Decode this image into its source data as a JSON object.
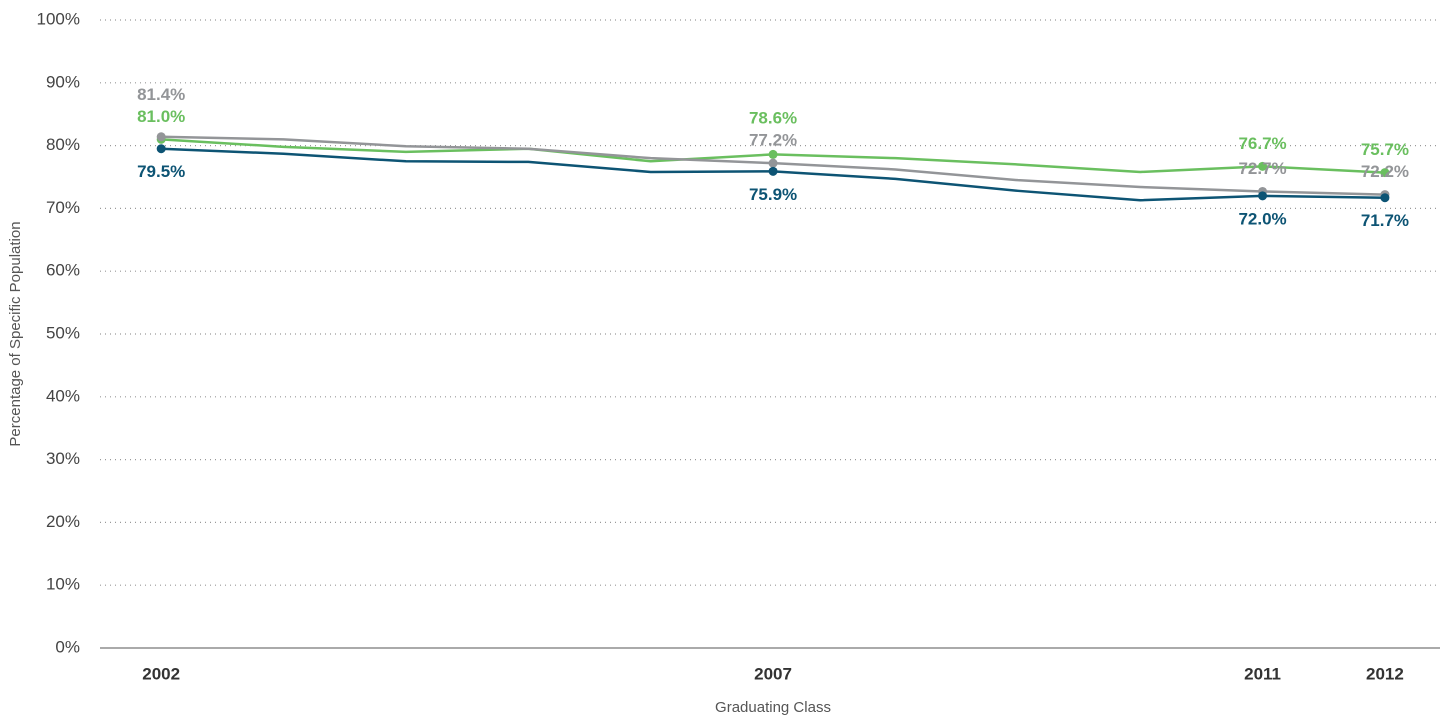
{
  "chart_data": {
    "type": "line",
    "x_label": "Graduating Class",
    "y_label": "Percentage of Specific Population",
    "x": [
      2002,
      2003,
      2004,
      2005,
      2006,
      2007,
      2008,
      2009,
      2010,
      2011,
      2012
    ],
    "xlim": [
      2001.5,
      2012.45
    ],
    "xticks": [
      2002,
      2007,
      2011,
      2012
    ],
    "ylim": [
      0,
      100
    ],
    "yticks": [
      {
        "value": 0,
        "label": "0%"
      },
      {
        "value": 10,
        "label": "10%"
      },
      {
        "value": 20,
        "label": "20%"
      },
      {
        "value": 30,
        "label": "30%"
      },
      {
        "value": 40,
        "label": "40%"
      },
      {
        "value": 50,
        "label": "50%"
      },
      {
        "value": 60,
        "label": "60%"
      },
      {
        "value": 70,
        "label": "70%"
      },
      {
        "value": 80,
        "label": "80%"
      },
      {
        "value": 90,
        "label": "90%"
      },
      {
        "value": 100,
        "label": "100%"
      }
    ],
    "grid": true,
    "series": [
      {
        "color": "#6abf5f",
        "values": [
          81.0,
          79.8,
          79.0,
          79.5,
          77.5,
          78.6,
          78.0,
          77.0,
          75.8,
          76.7,
          75.7
        ],
        "value_labels": [
          "81.0%",
          null,
          null,
          null,
          null,
          "78.6%",
          null,
          null,
          null,
          "76.7%",
          "75.7%"
        ]
      },
      {
        "color": "#939598",
        "values": [
          81.4,
          81.0,
          79.9,
          79.5,
          78.0,
          77.2,
          76.2,
          74.5,
          73.4,
          72.7,
          72.2
        ],
        "value_labels": [
          "81.4%",
          null,
          null,
          null,
          null,
          "77.2%",
          null,
          null,
          null,
          "72.7%",
          "72.2%"
        ]
      },
      {
        "color": "#0d5474",
        "values": [
          79.5,
          78.7,
          77.5,
          77.4,
          75.8,
          75.9,
          74.7,
          72.8,
          71.3,
          72.0,
          71.7
        ],
        "value_labels": [
          "79.5%",
          null,
          null,
          null,
          null,
          "75.9%",
          null,
          null,
          null,
          "72.0%",
          "71.7%"
        ]
      }
    ]
  }
}
